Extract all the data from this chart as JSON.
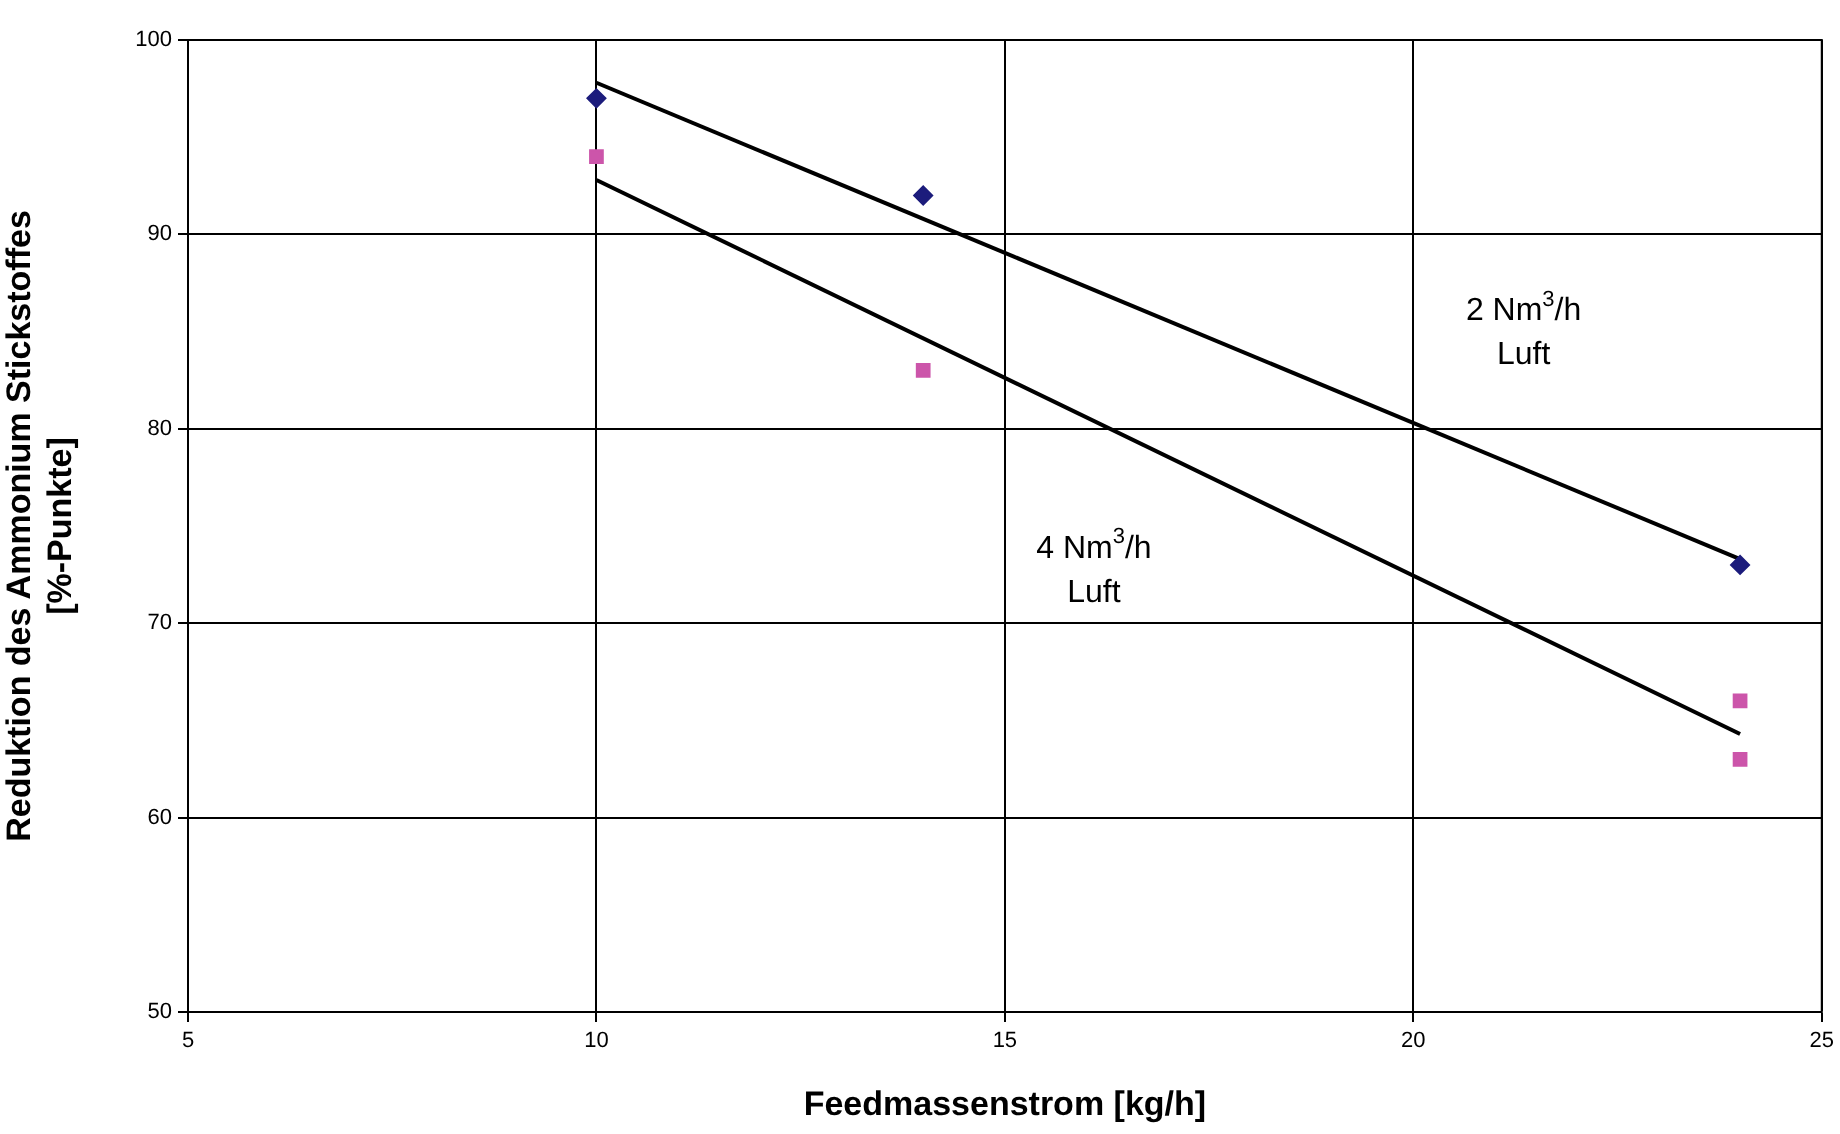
{
  "chart_data": {
    "type": "scatter",
    "xlabel": "Feedmassenstrom [kg/h]",
    "ylabel": "Reduktion des Ammonium Stickstoffes\n[%-Punkte]",
    "series": [
      {
        "type": "scatter",
        "color": "#1c1c7c",
        "marker": "diamond",
        "x": [
          10,
          14,
          24
        ],
        "values": [
          97,
          92,
          73
        ]
      },
      {
        "type": "scatter",
        "color": "#cc55aa",
        "marker": "square",
        "x": [
          10,
          14,
          24,
          24
        ],
        "values": [
          94,
          83,
          66,
          63
        ]
      },
      {
        "type": "line",
        "color": "#000000",
        "marker": "none",
        "x": [
          10,
          24
        ],
        "values": [
          97.8,
          73.3
        ]
      },
      {
        "type": "line",
        "color": "#000000",
        "marker": "none",
        "x": [
          10,
          24
        ],
        "values": [
          92.8,
          64.3
        ]
      }
    ],
    "annotations": [
      "2 Nm$^{3}$/h\nLuft",
      "4 Nm$^{3}$/h\nLuft"
    ],
    "xlim": [
      5,
      25
    ],
    "xticks": [
      5,
      10,
      15,
      20,
      25
    ],
    "ylim": [
      50,
      100
    ],
    "yticks": [
      50,
      60,
      70,
      80,
      90,
      100
    ],
    "grid": true,
    "legend": false
  }
}
